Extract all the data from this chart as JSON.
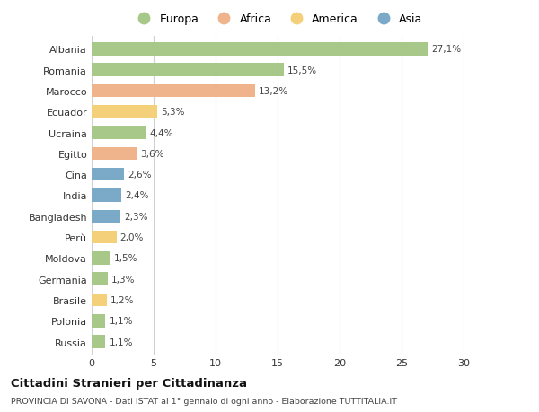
{
  "categories": [
    "Albania",
    "Romania",
    "Marocco",
    "Ecuador",
    "Ucraina",
    "Egitto",
    "Cina",
    "India",
    "Bangladesh",
    "Perù",
    "Moldova",
    "Germania",
    "Brasile",
    "Polonia",
    "Russia"
  ],
  "values": [
    27.1,
    15.5,
    13.2,
    5.3,
    4.4,
    3.6,
    2.6,
    2.4,
    2.3,
    2.0,
    1.5,
    1.3,
    1.2,
    1.1,
    1.1
  ],
  "labels": [
    "27,1%",
    "15,5%",
    "13,2%",
    "5,3%",
    "4,4%",
    "3,6%",
    "2,6%",
    "2,4%",
    "2,3%",
    "2,0%",
    "1,5%",
    "1,3%",
    "1,2%",
    "1,1%",
    "1,1%"
  ],
  "colors": [
    "#a8c88a",
    "#a8c88a",
    "#f0b48c",
    "#f5d07a",
    "#a8c88a",
    "#f0b48c",
    "#7baac8",
    "#7baac8",
    "#7baac8",
    "#f5d07a",
    "#a8c88a",
    "#a8c88a",
    "#f5d07a",
    "#a8c88a",
    "#a8c88a"
  ],
  "legend_labels": [
    "Europa",
    "Africa",
    "America",
    "Asia"
  ],
  "legend_colors": [
    "#a8c88a",
    "#f0b48c",
    "#f5d07a",
    "#7baac8"
  ],
  "xlim": [
    0,
    30
  ],
  "xticks": [
    0,
    5,
    10,
    15,
    20,
    25,
    30
  ],
  "title": "Cittadini Stranieri per Cittadinanza",
  "subtitle": "PROVINCIA DI SAVONA - Dati ISTAT al 1° gennaio di ogni anno - Elaborazione TUTTITALIA.IT",
  "background_color": "#ffffff",
  "grid_color": "#d0d0d0"
}
